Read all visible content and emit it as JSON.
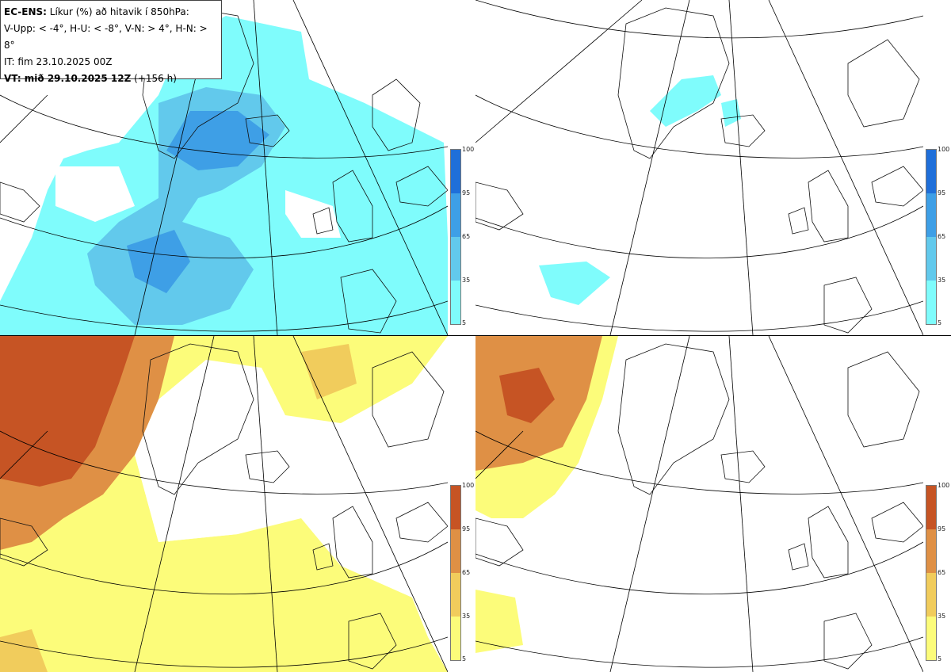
{
  "header": {
    "model": "EC-ENS:",
    "title": "Líkur (%) að hitavik í 850hPa:",
    "legend_text": "V-Upp: < -4°, H-U: < -8°, V-N: > 4°, H-N: > 8°",
    "init_time": "IT: fim 23.10.2025 00Z",
    "valid_label": "VT: mið 29.10.2025 12Z",
    "lead_time": "(+156 h)"
  },
  "colorbar_ticks": [
    "100",
    "95",
    "65",
    "35",
    "5"
  ],
  "colors": {
    "cold_levels": [
      "#7ffcfc",
      "#62c9ec",
      "#3e9fe6",
      "#1f6fd9"
    ],
    "warm_levels": [
      "#fcfc7a",
      "#f1cc5c",
      "#df9045",
      "#c65424"
    ],
    "coast": "#111111",
    "grid": "#000000"
  },
  "panels": [
    {
      "id": "upper-left",
      "variable": "V-Upp"
    },
    {
      "id": "upper-right",
      "variable": "H-U"
    },
    {
      "id": "lower-left",
      "variable": "V-N"
    },
    {
      "id": "lower-right",
      "variable": "H-N"
    }
  ]
}
